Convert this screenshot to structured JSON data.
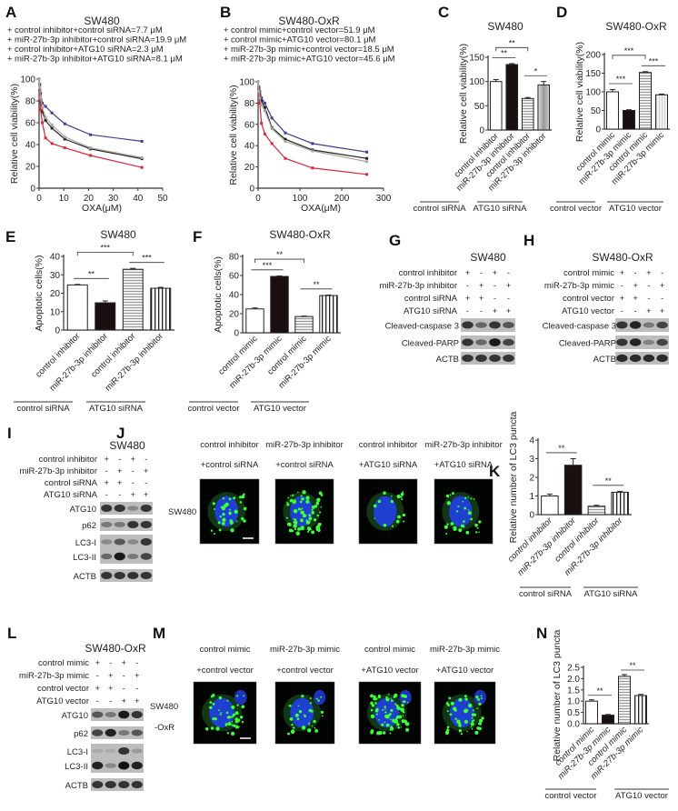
{
  "panel_labels": [
    "A",
    "B",
    "C",
    "D",
    "E",
    "F",
    "G",
    "H",
    "I",
    "J",
    "K",
    "L",
    "M",
    "N"
  ],
  "chart_data": [
    {
      "id": "A",
      "type": "line",
      "title": "SW480",
      "xlabel": "OXA(μM)",
      "ylabel": "Relative cell viability(%)",
      "xlim": [
        0,
        50
      ],
      "ylim": [
        0,
        100
      ],
      "xticks": [
        0,
        10,
        20,
        30,
        40,
        50
      ],
      "yticks": [
        0,
        20,
        40,
        60,
        80,
        100
      ],
      "legend": "top",
      "series": [
        {
          "name": "control inhibitor+control siRNA=7.7 μM",
          "color": "#222222",
          "x": [
            0,
            0.3,
            0.6,
            1.3,
            2.6,
            5.2,
            10.4,
            20.8,
            41.6
          ],
          "y": [
            100,
            90,
            80,
            70,
            62,
            55,
            45,
            36,
            27
          ]
        },
        {
          "name": "miR-27b-3p inhibitor+control siRNA=19.9 μM",
          "color": "#3b3f8f",
          "x": [
            0,
            0.3,
            0.6,
            1.3,
            2.6,
            5.2,
            10.4,
            20.8,
            41.6
          ],
          "y": [
            100,
            95,
            87,
            78,
            75,
            69,
            59,
            49,
            43
          ]
        },
        {
          "name": "control inhibitor+ATG10 siRNA=2.3 μM",
          "color": "#d6283a",
          "x": [
            0,
            0.3,
            0.6,
            1.3,
            2.6,
            5.2,
            10.4,
            20.8,
            41.6
          ],
          "y": [
            100,
            82,
            72,
            60,
            46,
            41,
            37,
            30,
            19
          ]
        },
        {
          "name": "miR-27b-3p inhibitor+ATG10 siRNA=8.1 μM",
          "color": "#a9a99a",
          "x": [
            0,
            0.3,
            0.6,
            1.3,
            2.6,
            5.2,
            10.4,
            20.8,
            41.6
          ],
          "y": [
            100,
            92,
            83,
            74,
            65,
            58,
            47,
            37,
            28
          ]
        }
      ]
    },
    {
      "id": "B",
      "type": "line",
      "title": "SW480-OxR",
      "xlabel": "OXA(μM)",
      "ylabel": "Relative cell viability(%)",
      "xlim": [
        0,
        300
      ],
      "ylim": [
        0,
        100
      ],
      "xticks": [
        0,
        100,
        200,
        300
      ],
      "yticks": [
        0,
        20,
        40,
        60,
        80,
        100
      ],
      "legend": "top",
      "series": [
        {
          "name": "control mimic+control vector=51.9 μM",
          "color": "#222222",
          "x": [
            0,
            2,
            4,
            8,
            16,
            33,
            65,
            130,
            260
          ],
          "y": [
            100,
            93,
            88,
            82,
            76,
            57,
            46,
            36,
            28
          ]
        },
        {
          "name": "control mimic+ATG10 vector=80.1 μM",
          "color": "#3b3f8f",
          "x": [
            0,
            2,
            4,
            8,
            16,
            33,
            65,
            130,
            260
          ],
          "y": [
            100,
            95,
            91,
            85,
            80,
            66,
            52,
            42,
            34
          ]
        },
        {
          "name": "miR-27b-3p mimic+control vector=18.5 μM",
          "color": "#d6283a",
          "x": [
            0,
            2,
            4,
            8,
            16,
            33,
            65,
            130,
            260
          ],
          "y": [
            100,
            88,
            80,
            61,
            51,
            42,
            28,
            19,
            13
          ]
        },
        {
          "name": "miR-27b-3p mimic+ATG10 vector=45.6 μM",
          "color": "#a9a99a",
          "x": [
            0,
            2,
            4,
            8,
            16,
            33,
            65,
            130,
            260
          ],
          "y": [
            100,
            91,
            85,
            78,
            73,
            56,
            44,
            35,
            25
          ]
        }
      ]
    },
    {
      "id": "C",
      "type": "bar",
      "title": "SW480",
      "ylabel": "Relative cell viability(%)",
      "ylim": [
        0,
        150
      ],
      "yticks": [
        0,
        50,
        100,
        150
      ],
      "categories": [
        "control inhibitor",
        "miR-27b-3p inhibitor",
        "control inhibitor",
        "miR-27b-3p inhibitor"
      ],
      "values": [
        100,
        135,
        65,
        93
      ],
      "errors": [
        4,
        2,
        2,
        7
      ],
      "fills": [
        "white",
        "black",
        "hstripe",
        "gray"
      ],
      "groups": [
        "control siRNA",
        "ATG10 siRNA"
      ],
      "significance": [
        {
          "pair": [
            0,
            1
          ],
          "label": "**"
        },
        {
          "pair": [
            0,
            2
          ],
          "label": "**"
        },
        {
          "pair": [
            2,
            3
          ],
          "label": "*"
        }
      ]
    },
    {
      "id": "D",
      "type": "bar",
      "title": "SW480-OxR",
      "ylabel": "Relative cell viability(%)",
      "ylim": [
        0,
        200
      ],
      "yticks": [
        0,
        50,
        100,
        150,
        200
      ],
      "categories": [
        "control mimic",
        "miR-27b-3p mimic",
        "control mimic",
        "miR-27b-3p mimic"
      ],
      "values": [
        100,
        50,
        152,
        92
      ],
      "errors": [
        6,
        2,
        2,
        2
      ],
      "fills": [
        "white",
        "black",
        "hstripe",
        "lightgray"
      ],
      "groups": [
        "control vector",
        "ATG10 vector"
      ],
      "significance": [
        {
          "pair": [
            0,
            1
          ],
          "label": "***"
        },
        {
          "pair": [
            0,
            2
          ],
          "label": "***"
        },
        {
          "pair": [
            2,
            3
          ],
          "label": "***"
        }
      ]
    },
    {
      "id": "E",
      "type": "bar",
      "title": "SW480",
      "ylabel": "Apoptotic cells(%)",
      "ylim": [
        0,
        40
      ],
      "yticks": [
        0,
        10,
        20,
        30,
        40
      ],
      "categories": [
        "control inhibitor",
        "miR-27b-3p inhibitor",
        "control inhibitor",
        "miR-27b-3p inhibitor"
      ],
      "values": [
        24.5,
        14.8,
        33,
        22.7
      ],
      "errors": [
        0.3,
        1,
        0.5,
        0.5
      ],
      "fills": [
        "white",
        "black",
        "hstripe",
        "vstripe"
      ],
      "groups": [
        "control siRNA",
        "ATG10 siRNA"
      ],
      "significance": [
        {
          "pair": [
            0,
            1
          ],
          "label": "**"
        },
        {
          "pair": [
            0,
            2
          ],
          "label": "***"
        },
        {
          "pair": [
            2,
            3
          ],
          "label": "***"
        }
      ]
    },
    {
      "id": "F",
      "type": "bar",
      "title": "SW480-OxR",
      "ylabel": "Apoptotic cells(%)",
      "ylim": [
        0,
        80
      ],
      "yticks": [
        0,
        20,
        40,
        60,
        80
      ],
      "categories": [
        "control mimic",
        "miR-27b-3p mimic",
        "control mimic",
        "miR-27b-3p mimic"
      ],
      "values": [
        25,
        59,
        17,
        39
      ],
      "errors": [
        1,
        0.5,
        0.5,
        0.5
      ],
      "fills": [
        "white",
        "black",
        "hstripe",
        "vstripe"
      ],
      "groups": [
        "control vector",
        "ATG10 vector"
      ],
      "significance": [
        {
          "pair": [
            0,
            1
          ],
          "label": "***"
        },
        {
          "pair": [
            0,
            2
          ],
          "label": "**"
        },
        {
          "pair": [
            2,
            3
          ],
          "label": "**"
        }
      ]
    },
    {
      "id": "K",
      "type": "bar",
      "title": "",
      "ylabel": "Relative number of LC3 puncta",
      "ylim": [
        0,
        4
      ],
      "yticks": [
        0,
        1,
        2,
        3,
        4
      ],
      "categories": [
        "control inhibitor",
        "miR-27b-3p inhibitor",
        "control inhibitor",
        "miR-27b-3p inhibitor"
      ],
      "values": [
        1.0,
        2.65,
        0.45,
        1.2
      ],
      "errors": [
        0.1,
        0.35,
        0.05,
        0.05
      ],
      "fills": [
        "white",
        "black",
        "hstripe",
        "vstripe"
      ],
      "groups": [
        "control siRNA",
        "ATG10 siRNA"
      ],
      "significance": [
        {
          "pair": [
            0,
            1
          ],
          "label": "**"
        },
        {
          "pair": [
            2,
            3
          ],
          "label": "**"
        }
      ]
    },
    {
      "id": "N",
      "type": "bar",
      "title": "",
      "ylabel": "Relative number of LC3 puncta",
      "ylim": [
        0,
        2.5
      ],
      "yticks": [
        0.0,
        0.5,
        1.0,
        1.5,
        2.0,
        2.5
      ],
      "categories": [
        "control mimic",
        "miR-27b-3p mimic",
        "control mimic",
        "miR-27b-3p mimic"
      ],
      "values": [
        1.0,
        0.38,
        2.1,
        1.25
      ],
      "errors": [
        0.06,
        0.03,
        0.08,
        0.05
      ],
      "fills": [
        "white",
        "black",
        "hstripe",
        "vstripe"
      ],
      "groups": [
        "control vector",
        "ATG10 vector"
      ],
      "significance": [
        {
          "pair": [
            0,
            1
          ],
          "label": "**"
        },
        {
          "pair": [
            2,
            3
          ],
          "label": "**"
        }
      ]
    }
  ],
  "blots": [
    {
      "id": "G",
      "title": "SW480",
      "conditions": [
        {
          "label": "control inhibitor",
          "lanes": [
            "+",
            "-",
            "+",
            "-"
          ]
        },
        {
          "label": "miR-27b-3p inhibitor",
          "lanes": [
            "-",
            "+",
            "-",
            "+"
          ]
        },
        {
          "label": "control siRNA",
          "lanes": [
            "+",
            "+",
            "-",
            "-"
          ]
        },
        {
          "label": "ATG10 siRNA",
          "lanes": [
            "-",
            "-",
            "+",
            "+"
          ]
        }
      ],
      "proteins": [
        {
          "labels": [
            "Cleaved-caspase 3"
          ],
          "band_intensity": [
            [
              0.8,
              0.5,
              0.8,
              0.6
            ]
          ]
        },
        {
          "labels": [
            "Cleaved-PARP"
          ],
          "band_intensity": [
            [
              0.8,
              0.5,
              0.95,
              0.7
            ]
          ]
        },
        {
          "labels": [
            "ACTB"
          ],
          "band_intensity": [
            [
              0.8,
              0.8,
              0.8,
              0.8
            ]
          ]
        }
      ]
    },
    {
      "id": "H",
      "title": "SW480-OxR",
      "conditions": [
        {
          "label": "control mimic",
          "lanes": [
            "+",
            "-",
            "+",
            "-"
          ]
        },
        {
          "label": "miR-27b-3p mimic",
          "lanes": [
            "-",
            "+",
            "-",
            "+"
          ]
        },
        {
          "label": "control vector",
          "lanes": [
            "+",
            "+",
            "-",
            "-"
          ]
        },
        {
          "label": "ATG10 vector",
          "lanes": [
            "-",
            "-",
            "+",
            "+"
          ]
        }
      ],
      "proteins": [
        {
          "labels": [
            "Cleaved-caspase 3"
          ],
          "band_intensity": [
            [
              0.8,
              0.9,
              0.4,
              0.7
            ]
          ]
        },
        {
          "labels": [
            "Cleaved-PARP"
          ],
          "band_intensity": [
            [
              0.8,
              0.9,
              0.35,
              0.7
            ]
          ]
        },
        {
          "labels": [
            "ACTB"
          ],
          "band_intensity": [
            [
              0.85,
              0.85,
              0.85,
              0.85
            ]
          ]
        }
      ]
    },
    {
      "id": "I",
      "title": "SW480",
      "conditions": [
        {
          "label": "control inhibitor",
          "lanes": [
            "+",
            "-",
            "+",
            "-"
          ]
        },
        {
          "label": "miR-27b-3p inhibitor",
          "lanes": [
            "-",
            "+",
            "-",
            "+"
          ]
        },
        {
          "label": "control siRNA",
          "lanes": [
            "+",
            "+",
            "-",
            "-"
          ]
        },
        {
          "label": "ATG10 siRNA",
          "lanes": [
            "-",
            "-",
            "+",
            "+"
          ]
        }
      ],
      "proteins": [
        {
          "labels": [
            "ATG10"
          ],
          "band_intensity": [
            [
              0.8,
              0.8,
              0.3,
              0.8
            ]
          ]
        },
        {
          "labels": [
            "p62"
          ],
          "band_intensity": [
            [
              0.4,
              0.4,
              0.8,
              0.8
            ]
          ]
        },
        {
          "labels": [
            "LC3-I",
            "LC3-II"
          ],
          "band_intensity": [
            [
              0.3,
              0.6,
              0.3,
              0.8
            ],
            [
              0.5,
              0.95,
              0.4,
              0.7
            ]
          ]
        },
        {
          "labels": [
            "ACTB"
          ],
          "band_intensity": [
            [
              0.8,
              0.8,
              0.8,
              0.8
            ]
          ]
        }
      ]
    },
    {
      "id": "L",
      "title": "SW480-OxR",
      "conditions": [
        {
          "label": "control mimic",
          "lanes": [
            "+",
            "-",
            "+",
            "-"
          ]
        },
        {
          "label": "miR-27b-3p mimic",
          "lanes": [
            "-",
            "+",
            "-",
            "+"
          ]
        },
        {
          "label": "control vector",
          "lanes": [
            "+",
            "+",
            "-",
            "-"
          ]
        },
        {
          "label": "ATG10 vector",
          "lanes": [
            "-",
            "-",
            "+",
            "+"
          ]
        }
      ],
      "proteins": [
        {
          "labels": [
            "ATG10"
          ],
          "band_intensity": [
            [
              0.6,
              0.4,
              0.95,
              0.8
            ]
          ]
        },
        {
          "labels": [
            "p62"
          ],
          "band_intensity": [
            [
              0.7,
              0.9,
              0.4,
              0.6
            ]
          ]
        },
        {
          "labels": [
            "LC3-I",
            "LC3-II"
          ],
          "band_intensity": [
            [
              0.1,
              0.1,
              0.8,
              0.2
            ],
            [
              0.9,
              0.3,
              1.0,
              0.9
            ]
          ]
        },
        {
          "labels": [
            "ACTB"
          ],
          "band_intensity": [
            [
              0.8,
              0.8,
              0.8,
              0.8
            ]
          ]
        }
      ]
    }
  ],
  "micrographs": [
    {
      "id": "J",
      "cell_line": [
        "SW480"
      ],
      "captions": [
        [
          "control inhibitor",
          "+control siRNA"
        ],
        [
          "miR-27b-3p inhibitor",
          "+control siRNA"
        ],
        [
          "control inhibitor",
          "+ATG10 siRNA"
        ],
        [
          "miR-27b-3p inhibitor",
          "+ATG10 siRNA"
        ]
      ],
      "puncta_level": [
        0.3,
        0.9,
        0.1,
        0.3
      ]
    },
    {
      "id": "M",
      "cell_line": [
        "SW480",
        "-OxR"
      ],
      "captions": [
        [
          "control mimic",
          "+control vector"
        ],
        [
          "miR-27b-3p mimic",
          "+control vector"
        ],
        [
          "control mimic",
          "+ATG10 vector"
        ],
        [
          "miR-27b-3p mimic",
          "+ATG10 vector"
        ]
      ],
      "puncta_level": [
        0.5,
        0.3,
        1.0,
        0.6
      ]
    }
  ]
}
